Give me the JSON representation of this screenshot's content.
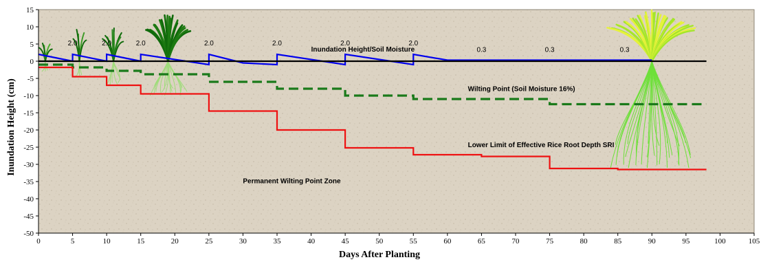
{
  "chart_data": {
    "type": "line",
    "xlabel": "Days After Planting",
    "ylabel": "Inundation Height (cm)",
    "xlim": [
      0,
      105
    ],
    "ylim": [
      -50,
      15
    ],
    "x_ticks": [
      0,
      5,
      10,
      15,
      20,
      25,
      30,
      35,
      40,
      45,
      50,
      55,
      60,
      65,
      70,
      75,
      80,
      85,
      90,
      95,
      100,
      105
    ],
    "y_ticks": [
      15,
      10,
      5,
      0,
      -5,
      -10,
      -15,
      -20,
      -25,
      -30,
      -35,
      -40,
      -45,
      -50
    ],
    "grid": false,
    "background": "textured beige with rice plant illustrations",
    "series": [
      {
        "name": "Inundation Height/Soil Moisture",
        "color": "#0000ee",
        "style": "solid",
        "points": [
          [
            0,
            2.0
          ],
          [
            5,
            0.0
          ],
          [
            5,
            2.0
          ],
          [
            10,
            0.0
          ],
          [
            10,
            2.0
          ],
          [
            15,
            0.0
          ],
          [
            15,
            2.0
          ],
          [
            25,
            -1.0
          ],
          [
            25,
            2.0
          ],
          [
            30,
            -0.5
          ],
          [
            35,
            -1.0
          ],
          [
            35,
            2.0
          ],
          [
            45,
            -1.0
          ],
          [
            45,
            2.0
          ],
          [
            55,
            -1.0
          ],
          [
            55,
            2.0
          ],
          [
            60,
            0.3
          ],
          [
            90,
            0.3
          ]
        ]
      },
      {
        "name": "Zero line",
        "color": "#000000",
        "style": "solid",
        "points": [
          [
            0,
            0
          ],
          [
            98,
            0
          ]
        ]
      },
      {
        "name": "Wilting Point (Soil Moisture 16%)",
        "color": "#1a7a1a",
        "style": "dashed",
        "points": [
          [
            0,
            -1.0
          ],
          [
            5,
            -1.0
          ],
          [
            5,
            -1.8
          ],
          [
            10,
            -1.8
          ],
          [
            10,
            -2.8
          ],
          [
            15,
            -2.8
          ],
          [
            15,
            -3.8
          ],
          [
            25,
            -3.8
          ],
          [
            25,
            -6.0
          ],
          [
            35,
            -6.0
          ],
          [
            35,
            -8.0
          ],
          [
            45,
            -8.0
          ],
          [
            45,
            -10.0
          ],
          [
            55,
            -10.0
          ],
          [
            55,
            -11.0
          ],
          [
            75,
            -11.0
          ],
          [
            75,
            -12.5
          ],
          [
            98,
            -12.5
          ]
        ]
      },
      {
        "name": "Lower Limit of Effective Rice Root Depth SRI",
        "color": "#ee1111",
        "style": "solid",
        "points": [
          [
            0,
            -1.8
          ],
          [
            5,
            -1.8
          ],
          [
            5,
            -4.5
          ],
          [
            10,
            -4.5
          ],
          [
            10,
            -7.0
          ],
          [
            15,
            -7.0
          ],
          [
            15,
            -9.5
          ],
          [
            25,
            -9.5
          ],
          [
            25,
            -14.5
          ],
          [
            35,
            -14.5
          ],
          [
            35,
            -20.0
          ],
          [
            45,
            -20.0
          ],
          [
            45,
            -25.2
          ],
          [
            55,
            -25.2
          ],
          [
            55,
            -27.2
          ],
          [
            65,
            -27.2
          ],
          [
            65,
            -27.7
          ],
          [
            75,
            -27.7
          ],
          [
            75,
            -31.2
          ],
          [
            85,
            -31.2
          ],
          [
            85,
            -31.5
          ],
          [
            98,
            -31.5
          ]
        ]
      }
    ],
    "annotations": [
      {
        "text": "Inundation Height/Soil Moisture",
        "x": 40,
        "y": 2.8
      },
      {
        "text": "Wilting Point (Soil Moisture 16%)",
        "x": 63,
        "y": -8.7
      },
      {
        "text": "Lower Limit of Effective Rice Root Depth SRI",
        "x": 63,
        "y": -25.0
      },
      {
        "text": "Permanent Wilting Point Zone",
        "x": 30,
        "y": -35.5
      }
    ],
    "depth_labels": [
      {
        "text": "2.0",
        "x": 5,
        "y": 4.6
      },
      {
        "text": "2.0",
        "x": 10,
        "y": 4.6
      },
      {
        "text": "2.0",
        "x": 15,
        "y": 4.6
      },
      {
        "text": "2.0",
        "x": 25,
        "y": 4.6
      },
      {
        "text": "2.0",
        "x": 35,
        "y": 4.6
      },
      {
        "text": "2.0",
        "x": 45,
        "y": 4.6
      },
      {
        "text": "2.0",
        "x": 55,
        "y": 4.6
      },
      {
        "text": "0.3",
        "x": 65,
        "y": 2.7
      },
      {
        "text": "0.3",
        "x": 75,
        "y": 2.7
      },
      {
        "text": "0.3",
        "x": 86,
        "y": 2.7
      }
    ],
    "plants": [
      {
        "stage": "seedling",
        "x": 1,
        "top": 6,
        "root": -3,
        "color": "#4caf2e"
      },
      {
        "stage": "seedling",
        "x": 6,
        "top": 10,
        "root": -4.5,
        "color": "#3e9a28"
      },
      {
        "stage": "young",
        "x": 11,
        "top": 10,
        "root": -7,
        "color": "#2e8b22"
      },
      {
        "stage": "tillering",
        "x": 19,
        "top": 14,
        "root": -10,
        "color": "#1d7a12"
      },
      {
        "stage": "mature",
        "x": 90,
        "top": 15,
        "root": -31,
        "color": "#a4e62a"
      }
    ]
  }
}
